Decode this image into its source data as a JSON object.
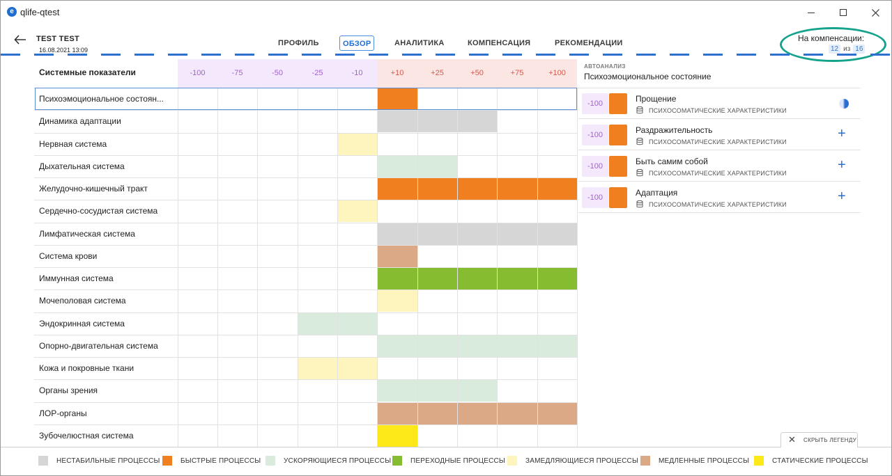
{
  "window": {
    "title": "qlife-qtest",
    "app_icon_letter": "e",
    "minimize": "minimize",
    "maximize": "maximize",
    "close": "close"
  },
  "header": {
    "user_name": "TEST TEST",
    "date": "16.08.2021 13:09",
    "tabs": [
      {
        "label": "ПРОФИЛЬ",
        "active": false
      },
      {
        "label": "ОБЗОР",
        "active": true
      },
      {
        "label": "АНАЛИТИКА",
        "active": false
      },
      {
        "label": "КОМПЕНСАЦИЯ",
        "active": false
      },
      {
        "label": "РЕКОМЕНДАЦИИ",
        "active": false
      }
    ],
    "compensation": {
      "label": "На компенсации:",
      "current": "12",
      "separator": "из",
      "total": "16"
    }
  },
  "table": {
    "title": "Системные показатели",
    "columns": [
      "-100",
      "-75",
      "-50",
      "-25",
      "-10",
      "+10",
      "+25",
      "+50",
      "+75",
      "+100"
    ],
    "rows": [
      {
        "label": "Психоэмоциональное состоян...",
        "fills": [
          {
            "from": 5,
            "to": 5,
            "type": "fast"
          }
        ]
      },
      {
        "label": "Динамика адаптации",
        "fills": [
          {
            "from": 5,
            "to": 7,
            "type": "unstable"
          }
        ]
      },
      {
        "label": "Нервная система",
        "fills": [
          {
            "from": 4,
            "to": 4,
            "type": "slowing"
          }
        ]
      },
      {
        "label": "Дыхательная система",
        "fills": [
          {
            "from": 5,
            "to": 6,
            "type": "accelerating"
          }
        ]
      },
      {
        "label": "Желудочно-кишечный тракт",
        "fills": [
          {
            "from": 5,
            "to": 9,
            "type": "fast"
          }
        ]
      },
      {
        "label": "Сердечно-сосудистая система",
        "fills": [
          {
            "from": 4,
            "to": 4,
            "type": "slowing"
          }
        ]
      },
      {
        "label": "Лимфатическая система",
        "fills": [
          {
            "from": 5,
            "to": 9,
            "type": "unstable"
          }
        ]
      },
      {
        "label": "Система крови",
        "fills": [
          {
            "from": 5,
            "to": 5,
            "type": "slow"
          }
        ]
      },
      {
        "label": "Иммунная система",
        "fills": [
          {
            "from": 5,
            "to": 9,
            "type": "transitional"
          }
        ]
      },
      {
        "label": "Мочеполовая система",
        "fills": [
          {
            "from": 5,
            "to": 5,
            "type": "slowing"
          }
        ]
      },
      {
        "label": "Эндокринная система",
        "fills": [
          {
            "from": 3,
            "to": 4,
            "type": "accelerating"
          }
        ]
      },
      {
        "label": "Опорно-двигательная система",
        "fills": [
          {
            "from": 5,
            "to": 9,
            "type": "accelerating"
          }
        ]
      },
      {
        "label": "Кожа и покровные ткани",
        "fills": [
          {
            "from": 3,
            "to": 4,
            "type": "slowing"
          }
        ]
      },
      {
        "label": "Органы зрения",
        "fills": [
          {
            "from": 5,
            "to": 7,
            "type": "accelerating"
          }
        ]
      },
      {
        "label": "ЛОР-органы",
        "fills": [
          {
            "from": 5,
            "to": 9,
            "type": "slow"
          }
        ]
      },
      {
        "label": "Зубочелюстная система",
        "fills": [
          {
            "from": 5,
            "to": 5,
            "type": "static"
          }
        ]
      }
    ]
  },
  "colors": {
    "unstable": "#d6d6d6",
    "fast": "#ef7f1f",
    "accelerating": "#d9ebdd",
    "transitional": "#86bc2f",
    "slowing": "#fdf4be",
    "slow": "#dca987",
    "static": "#fde919",
    "accent": "#1f6fd1",
    "highlight_oval": "#15a38c"
  },
  "autoanalysis": {
    "label": "АВТОАНАЛИЗ",
    "title": "Психоэмоциональное состояние",
    "items": [
      {
        "value": "-100",
        "name": "Прощение",
        "category": "ПСИХОСОМАТИЧЕСКИЕ ХАРАКТЕРИСТИКИ",
        "action": "half-circle-icon"
      },
      {
        "value": "-100",
        "name": "Раздражительность",
        "category": "ПСИХОСОМАТИЧЕСКИЕ ХАРАКТЕРИСТИКИ",
        "action": "plus-icon"
      },
      {
        "value": "-100",
        "name": "Быть самим собой",
        "category": "ПСИХОСОМАТИЧЕСКИЕ ХАРАКТЕРИСТИКИ",
        "action": "plus-icon"
      },
      {
        "value": "-100",
        "name": "Адаптация",
        "category": "ПСИХОСОМАТИЧЕСКИЕ ХАРАКТЕРИСТИКИ",
        "action": "plus-icon"
      }
    ]
  },
  "legend": {
    "hide_label": "СКРЫТЬ ЛЕГЕНДУ",
    "items": [
      {
        "key": "unstable",
        "label": "НЕСТАБИЛЬНЫЕ ПРОЦЕССЫ"
      },
      {
        "key": "fast",
        "label": "БЫСТРЫЕ ПРОЦЕССЫ"
      },
      {
        "key": "accelerating",
        "label": "УСКОРЯЮЩИЕСЯ ПРОЦЕССЫ"
      },
      {
        "key": "transitional",
        "label": "ПЕРЕХОДНЫЕ ПРОЦЕССЫ"
      },
      {
        "key": "slowing",
        "label": "ЗАМЕДЛЯЮЩИЕСЯ ПРОЦЕССЫ"
      },
      {
        "key": "slow",
        "label": "МЕДЛЕННЫЕ ПРОЦЕССЫ"
      },
      {
        "key": "static",
        "label": "СТАТИЧЕСКИЕ ПРОЦЕССЫ"
      }
    ]
  }
}
